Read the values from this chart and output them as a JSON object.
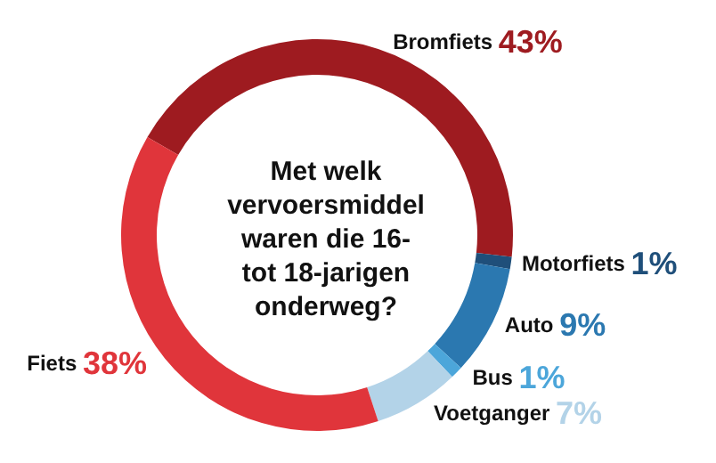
{
  "chart_data": {
    "type": "donut",
    "title": "Met welk\nvervoersmiddel\nwaren die 16-\ntot 18-jarigen\nonderweg?",
    "categories": [
      "Bromfiets",
      "Motorfiets",
      "Auto",
      "Bus",
      "Voetganger",
      "Fiets"
    ],
    "values": [
      43,
      1,
      9,
      1,
      7,
      38
    ],
    "value_labels": [
      "43%",
      "1%",
      "9%",
      "1%",
      "7%",
      "38%"
    ],
    "colors": [
      "#9e1b20",
      "#1f4f7a",
      "#2b78b0",
      "#4ca6da",
      "#b3d3e8",
      "#e0353b"
    ],
    "legend": false
  }
}
